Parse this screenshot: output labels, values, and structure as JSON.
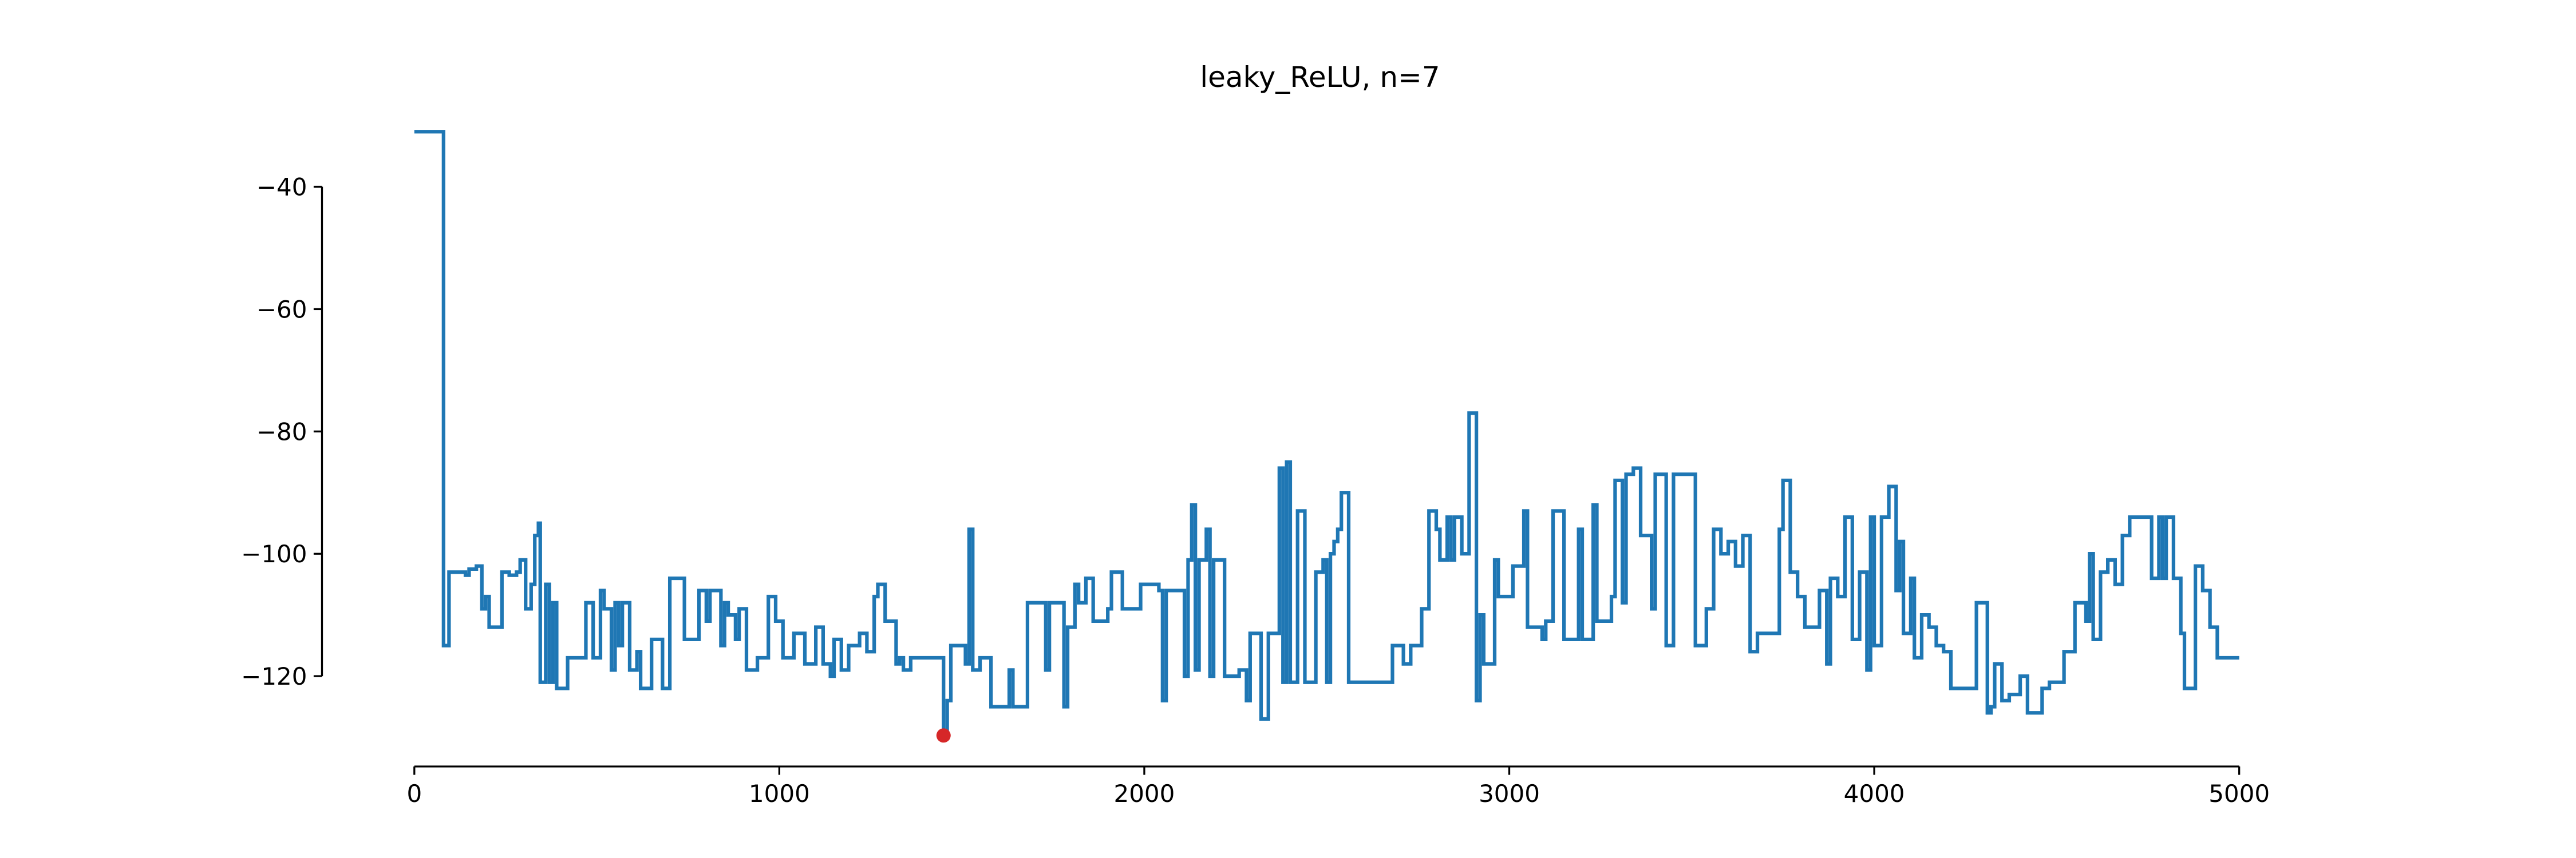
{
  "chart_data": {
    "type": "step",
    "title": "leaky_ReLU, n=7",
    "step": "post",
    "series": [
      {
        "name": "leaky_ReLU",
        "color": "#1f77b4",
        "x": [
          0,
          80,
          95,
          140,
          150,
          170,
          185,
          195,
          205,
          230,
          240,
          260,
          280,
          290,
          305,
          320,
          330,
          340,
          345,
          360,
          370,
          380,
          390,
          420,
          460,
          470,
          490,
          510,
          520,
          540,
          550,
          560,
          570,
          590,
          610,
          620,
          650,
          680,
          700,
          740,
          780,
          800,
          810,
          840,
          850,
          860,
          880,
          890,
          910,
          940,
          970,
          990,
          1010,
          1040,
          1070,
          1100,
          1120,
          1140,
          1150,
          1170,
          1190,
          1220,
          1240,
          1260,
          1270,
          1290,
          1320,
          1330,
          1340,
          1360,
          1400,
          1450,
          1460,
          1470,
          1510,
          1520,
          1530,
          1550,
          1580,
          1630,
          1640,
          1680,
          1730,
          1740,
          1780,
          1790,
          1800,
          1810,
          1820,
          1840,
          1860,
          1880,
          1900,
          1910,
          1940,
          1990,
          2040,
          2050,
          2060,
          2090,
          2110,
          2120,
          2130,
          2140,
          2150,
          2170,
          2180,
          2190,
          2220,
          2260,
          2280,
          2290,
          2320,
          2340,
          2370,
          2380,
          2390,
          2400,
          2420,
          2440,
          2470,
          2490,
          2500,
          2510,
          2520,
          2530,
          2540,
          2560,
          2600,
          2660,
          2680,
          2710,
          2730,
          2760,
          2780,
          2800,
          2810,
          2830,
          2840,
          2850,
          2870,
          2890,
          2910,
          2920,
          2930,
          2960,
          2970,
          3010,
          3040,
          3050,
          3090,
          3100,
          3120,
          3150,
          3190,
          3200,
          3230,
          3240,
          3280,
          3290,
          3310,
          3320,
          3340,
          3360,
          3390,
          3400,
          3430,
          3450,
          3480,
          3510,
          3540,
          3560,
          3580,
          3600,
          3620,
          3640,
          3660,
          3680,
          3740,
          3750,
          3770,
          3790,
          3810,
          3850,
          3870,
          3880,
          3900,
          3920,
          3940,
          3960,
          3980,
          3990,
          4000,
          4020,
          4040,
          4060,
          4070,
          4080,
          4100,
          4110,
          4130,
          4150,
          4170,
          4190,
          4210,
          4240,
          4280,
          4310,
          4320,
          4330,
          4350,
          4370,
          4400,
          4420,
          4460,
          4480,
          4520,
          4550,
          4580,
          4590,
          4600,
          4620,
          4640,
          4660,
          4680,
          4700,
          4760,
          4780,
          4790,
          4800,
          4820,
          4840,
          4850,
          4880,
          4900,
          4920,
          4940,
          5000
        ],
        "values": [
          -31,
          -115,
          -103,
          -103.5,
          -102.5,
          -102,
          -109,
          -107,
          -112,
          -112,
          -103,
          -103.5,
          -103,
          -101,
          -109,
          -105,
          -97,
          -95,
          -121,
          -105,
          -121,
          -108,
          -122,
          -117,
          -117,
          -108,
          -117,
          -106,
          -109,
          -119,
          -108,
          -115,
          -108,
          -119,
          -116,
          -122,
          -114,
          -122,
          -104,
          -114,
          -106,
          -111,
          -106,
          -115,
          -108,
          -110,
          -114,
          -109,
          -119,
          -117,
          -107,
          -111,
          -117,
          -113,
          -118,
          -112,
          -118,
          -120,
          -114,
          -119,
          -115,
          -113,
          -116,
          -107,
          -105,
          -111,
          -118,
          -117,
          -119,
          -117,
          -117,
          -129.7,
          -124,
          -115,
          -118,
          -96,
          -119,
          -117,
          -125,
          -119,
          -125,
          -108,
          -119,
          -108,
          -125,
          -112,
          -112,
          -105,
          -108,
          -104,
          -111,
          -111,
          -109,
          -103,
          -109,
          -105,
          -106,
          -124,
          -106,
          -106,
          -120,
          -101,
          -92,
          -119,
          -101,
          -96,
          -120,
          -101,
          -120,
          -119,
          -124,
          -113,
          -127,
          -113,
          -86,
          -121,
          -85,
          -121,
          -93,
          -121,
          -103,
          -101,
          -121,
          -100,
          -98,
          -96,
          -90,
          -121,
          -121,
          -121,
          -115,
          -118,
          -115,
          -109,
          -93,
          -96,
          -101,
          -94,
          -101,
          -94,
          -100,
          -77,
          -124,
          -110,
          -118,
          -101,
          -107,
          -102,
          -93,
          -112,
          -114,
          -111,
          -93,
          -114,
          -96,
          -114,
          -92,
          -111,
          -107,
          -88,
          -108,
          -87,
          -86,
          -97,
          -109,
          -87,
          -115,
          -87,
          -87,
          -115,
          -109,
          -96,
          -100,
          -98,
          -102,
          -97,
          -116,
          -113,
          -96,
          -88,
          -103,
          -107,
          -112,
          -106,
          -118,
          -104,
          -107,
          -94,
          -114,
          -103,
          -119,
          -94,
          -115,
          -94,
          -89,
          -106,
          -98,
          -113,
          -104,
          -117,
          -110,
          -112,
          -115,
          -116,
          -122,
          -122,
          -108,
          -126,
          -125,
          -118,
          -124,
          -123,
          -120,
          -126,
          -122,
          -121,
          -116,
          -108,
          -111,
          -100,
          -114,
          -103,
          -101,
          -105,
          -97,
          -94,
          -104,
          -94,
          -104,
          -94,
          -104,
          -113,
          -122,
          -102,
          -106,
          -112,
          -117,
          -117
        ]
      }
    ],
    "highlight": {
      "x": 1450,
      "value": -129.7,
      "color": "#d62728"
    },
    "xlim": [
      -253,
      5217
    ],
    "ylim": [
      -134.3,
      -26.3
    ],
    "xticks": [
      0,
      1000,
      2000,
      3000,
      4000,
      5000
    ],
    "yticks": [
      {
        "value": -40,
        "label": "−40"
      },
      {
        "value": -60,
        "label": "−60"
      },
      {
        "value": -80,
        "label": "−80"
      },
      {
        "value": -100,
        "label": "−100"
      },
      {
        "value": -120,
        "label": "−120"
      }
    ]
  }
}
